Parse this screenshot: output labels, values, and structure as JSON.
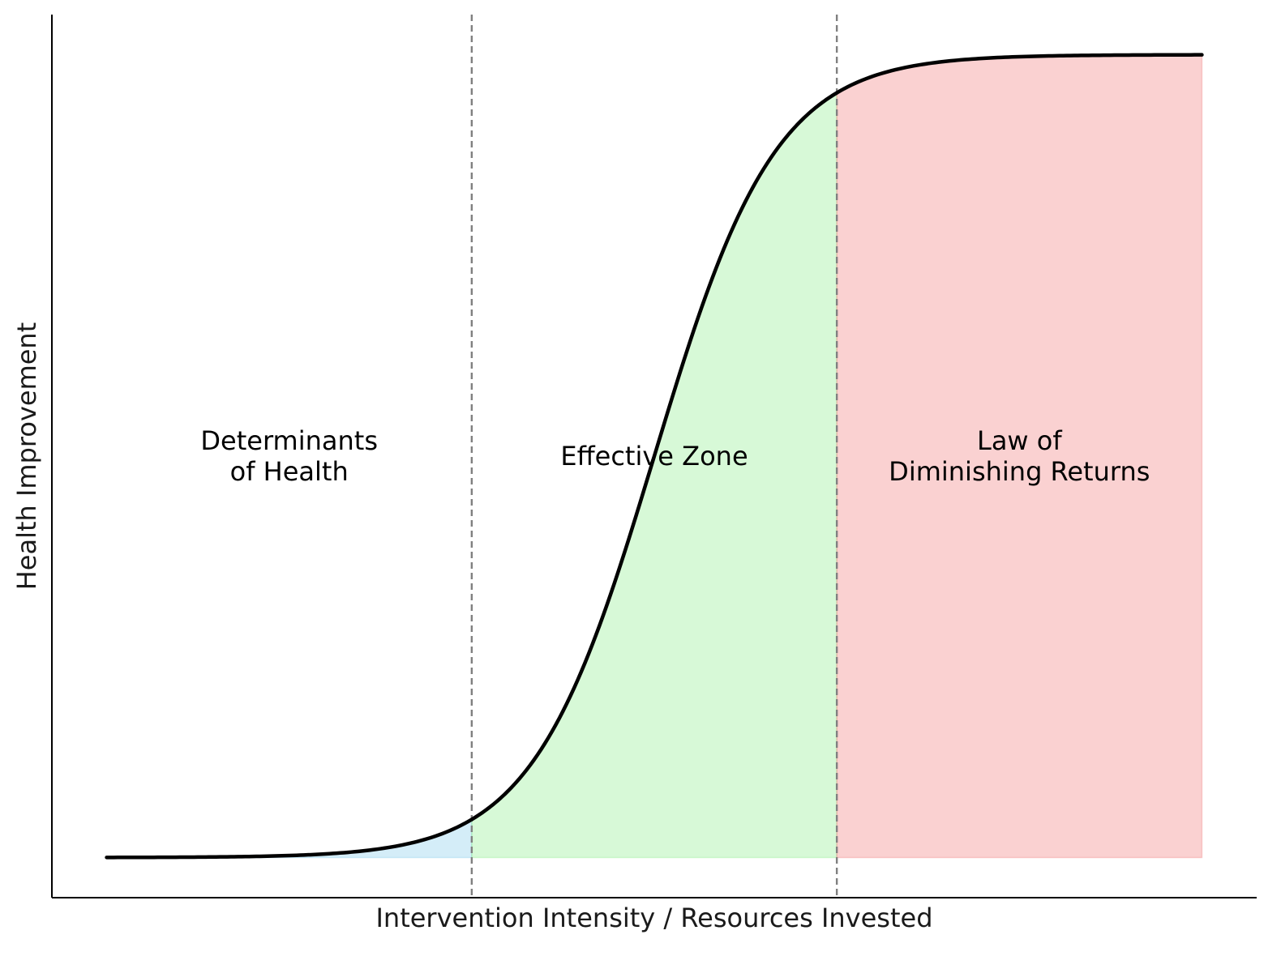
{
  "chart_data": {
    "type": "area",
    "title": "",
    "xlabel": "Intervention Intensity / Resources Invested",
    "ylabel": "Health Improvement",
    "xlim": [
      -0.15,
      3.15
    ],
    "ylim": [
      -0.05,
      1.05
    ],
    "x_ticks_shown": false,
    "y_ticks_shown": false,
    "grid": false,
    "curve": {
      "shape": "logistic",
      "x": [
        0,
        0.15,
        0.3,
        0.45,
        0.6,
        0.75,
        0.9,
        1.0,
        1.1,
        1.25,
        1.4,
        1.5,
        1.6,
        1.75,
        1.9,
        2.0,
        2.1,
        2.25,
        2.4,
        2.55,
        2.7,
        2.85,
        3.0
      ],
      "y": [
        0.003,
        0.006,
        0.013,
        0.027,
        0.055,
        0.109,
        0.2,
        0.276,
        0.371,
        0.532,
        0.689,
        0.774,
        0.842,
        0.913,
        0.953,
        0.971,
        0.982,
        0.991,
        0.995,
        0.997,
        0.999,
        0.999,
        1.0
      ],
      "color": "#000000"
    },
    "boundaries": [
      1.0,
      2.0
    ],
    "regions": [
      {
        "label": "Determinants\nof Health",
        "x_start": 0.0,
        "x_end": 1.0,
        "color": "#87CEEB"
      },
      {
        "label": "Effective Zone",
        "x_start": 1.0,
        "x_end": 2.0,
        "color": "#90EE90"
      },
      {
        "label": "Law of\nDiminishing Returns",
        "x_start": 2.0,
        "x_end": 3.0,
        "color": "#F08080"
      }
    ]
  }
}
